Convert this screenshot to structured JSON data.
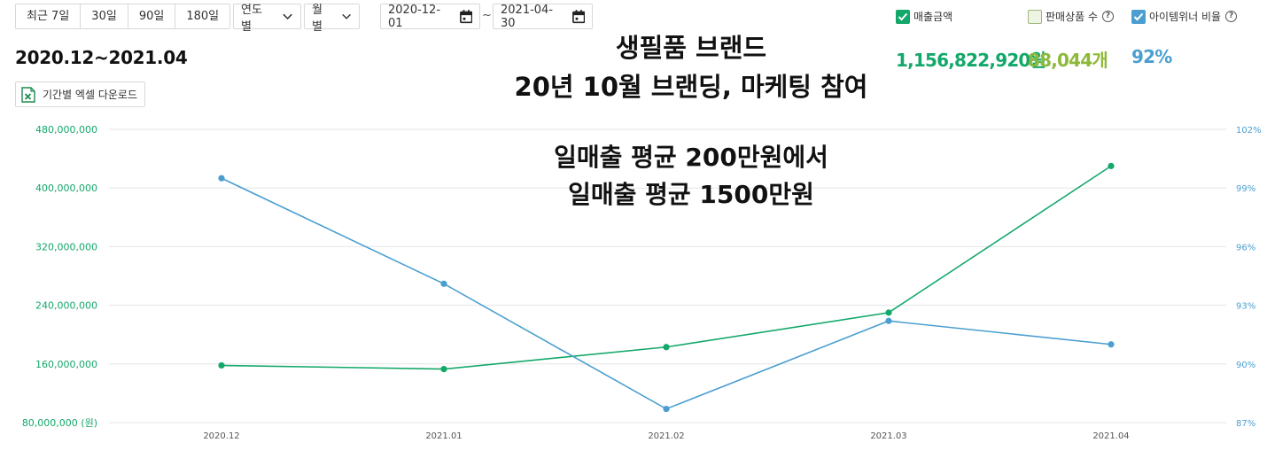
{
  "toolbar": {
    "range_buttons": [
      "최근 7일",
      "30일",
      "90일",
      "180일"
    ],
    "year_select": "연도별",
    "month_select": "월별",
    "start_date": "2020-12-01",
    "end_date": "2021-04-30",
    "date_separator": "~"
  },
  "period_label": "2020.12~2021.04",
  "excel_button": "기간별 엑셀 다운로드",
  "overlay": {
    "line1": "생필품 브랜드",
    "line2": "20년 10월 브랜딩, 마케팅 참여",
    "line3": "일매출 평균 200만원에서",
    "line4": "일매출 평균 1500만원"
  },
  "legend": {
    "sales_label": "매출금액",
    "products_label": "판매상품 수",
    "winner_label": "아이템위너 비율",
    "sales_checked": true,
    "products_checked": false,
    "winner_checked": true
  },
  "totals": {
    "sales": "1,156,822,920원",
    "products": "88,044개",
    "winner": "92%"
  },
  "colors": {
    "sales": "#13a86a",
    "products": "#8db83a",
    "winner": "#4a9fd0"
  },
  "icons": {
    "chevron": "chevron-down-icon",
    "calendar": "calendar-icon",
    "excel": "excel-icon",
    "help": "help-circle-icon",
    "check": "check-icon"
  },
  "chart_data": {
    "type": "line",
    "categories": [
      "2020.12",
      "2021.01",
      "2021.02",
      "2021.03",
      "2021.04"
    ],
    "series": [
      {
        "name": "매출금액",
        "axis": "left",
        "values": [
          158000000,
          153000000,
          183000000,
          230000000,
          430000000
        ]
      },
      {
        "name": "아이템위너 비율",
        "axis": "right",
        "values": [
          99.5,
          94.1,
          87.7,
          92.2,
          91.0
        ]
      }
    ],
    "y_left": {
      "ylim": [
        80000000,
        480000000
      ],
      "ticks": [
        80000000,
        160000000,
        240000000,
        320000000,
        400000000,
        480000000
      ],
      "tick_labels": [
        "80,000,000 (원)",
        "160,000,000",
        "240,000,000",
        "320,000,000",
        "400,000,000",
        "480,000,000"
      ]
    },
    "y_right": {
      "ylim": [
        87,
        102
      ],
      "ticks": [
        87,
        90,
        93,
        96,
        99,
        102
      ],
      "tick_labels": [
        "87%",
        "90%",
        "93%",
        "96%",
        "99%",
        "102%"
      ]
    },
    "grid": true
  }
}
